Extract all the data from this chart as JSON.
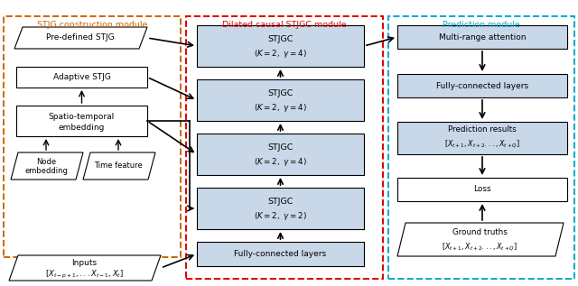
{
  "fig_width": 6.4,
  "fig_height": 3.17,
  "dpi": 100,
  "bg_color": "#ffffff",
  "module1_color": "#cc6600",
  "module2_color": "#dd0000",
  "module3_color": "#00aacc",
  "box_fill_blue": "#c8d8e8",
  "title1": "STJG construction module",
  "title2": "Dilated causal STJGC module",
  "title3": "Prediction module"
}
